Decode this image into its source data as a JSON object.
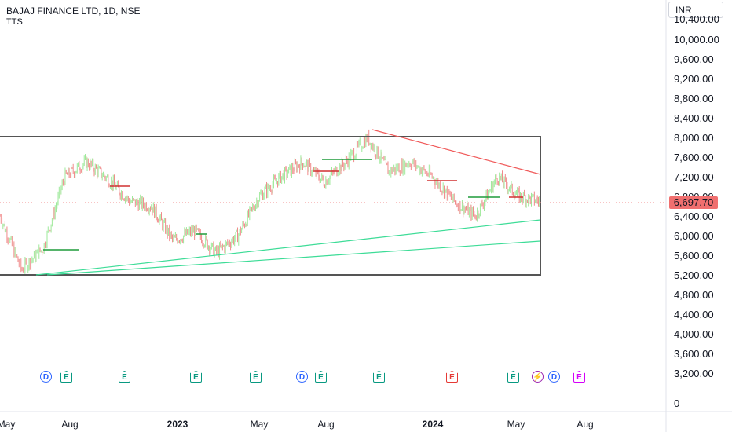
{
  "legend": {
    "symbol": "BAJAJ FINANCE LTD, 1D, NSE",
    "indicator": "TTS"
  },
  "currency": "INR",
  "price_axis": {
    "ticks": [
      "10,400.00",
      "10,000.00",
      "9,600.00",
      "9,200.00",
      "8,800.00",
      "8,400.00",
      "8,000.00",
      "7,600.00",
      "7,200.00",
      "6,800.00",
      "6,400.00",
      "6,000.00",
      "5,600.00",
      "5,200.00",
      "4,800.00",
      "4,400.00",
      "4,000.00",
      "3,600.00",
      "3,200.00",
      "0"
    ],
    "last_price": "6,697.70"
  },
  "time_axis": {
    "ticks": [
      {
        "label": "May",
        "bold": false
      },
      {
        "label": "Aug",
        "bold": false
      },
      {
        "label": "2023",
        "bold": true
      },
      {
        "label": "May",
        "bold": false
      },
      {
        "label": "Aug",
        "bold": false
      },
      {
        "label": "2024",
        "bold": true
      },
      {
        "label": "May",
        "bold": false
      },
      {
        "label": "Aug",
        "bold": false
      }
    ]
  },
  "events": [
    {
      "type": "div",
      "label": "D"
    },
    {
      "type": "earn",
      "label": "E"
    },
    {
      "type": "earn",
      "label": "E"
    },
    {
      "type": "earn",
      "label": "E"
    },
    {
      "type": "earn",
      "label": "E"
    },
    {
      "type": "div",
      "label": "D"
    },
    {
      "type": "earn",
      "label": "E"
    },
    {
      "type": "earn",
      "label": "E"
    },
    {
      "type": "earn-red",
      "label": "E"
    },
    {
      "type": "earn",
      "label": "E"
    },
    {
      "type": "split",
      "label": "⚡"
    },
    {
      "type": "div",
      "label": "D"
    },
    {
      "type": "earn-pink",
      "label": "E"
    }
  ],
  "colors": {
    "up": "#9ee99a",
    "down": "#f08a8a",
    "box": "#555555",
    "resistance": "#f05a5a",
    "support": "#3ddc97",
    "level_green": "#1f9c3a",
    "level_red": "#d03030",
    "last_price_line": "#f08a8a"
  },
  "chart_data": {
    "type": "candlestick",
    "symbol": "BAJAJ FINANCE LTD",
    "interval": "1D",
    "exchange": "NSE",
    "y_range": [
      5000,
      10500
    ],
    "last_close": 6697.7,
    "series": [
      {
        "period": "May 2022",
        "close": 6400
      },
      {
        "period": "Jun 2022",
        "close": 5300
      },
      {
        "period": "Jul 2022",
        "close": 5750
      },
      {
        "period": "Aug 2022",
        "close": 7200
      },
      {
        "period": "Sep 2022",
        "close": 7500
      },
      {
        "period": "Oct 2022",
        "close": 7150
      },
      {
        "period": "Nov 2022",
        "close": 6700
      },
      {
        "period": "Dec 2022",
        "close": 6600
      },
      {
        "period": "Jan 2023",
        "close": 5900
      },
      {
        "period": "Feb 2023",
        "close": 6100
      },
      {
        "period": "Mar 2023",
        "close": 5650
      },
      {
        "period": "Apr 2023",
        "close": 6000
      },
      {
        "period": "May 2023",
        "close": 6800
      },
      {
        "period": "Jun 2023",
        "close": 7200
      },
      {
        "period": "Jul 2023",
        "close": 7500
      },
      {
        "period": "Aug 2023",
        "close": 7100
      },
      {
        "period": "Sep 2023",
        "close": 7500
      },
      {
        "period": "Oct 2023",
        "close": 8000
      },
      {
        "period": "Nov 2023",
        "close": 7300
      },
      {
        "period": "Dec 2023",
        "close": 7500
      },
      {
        "period": "Jan 2024",
        "close": 7200
      },
      {
        "period": "Feb 2024",
        "close": 6700
      },
      {
        "period": "Mar 2024",
        "close": 6400
      },
      {
        "period": "Apr 2024",
        "close": 7200
      },
      {
        "period": "May 2024",
        "close": 6800
      },
      {
        "period": "Jun 2024",
        "close": 6697.7
      }
    ]
  }
}
